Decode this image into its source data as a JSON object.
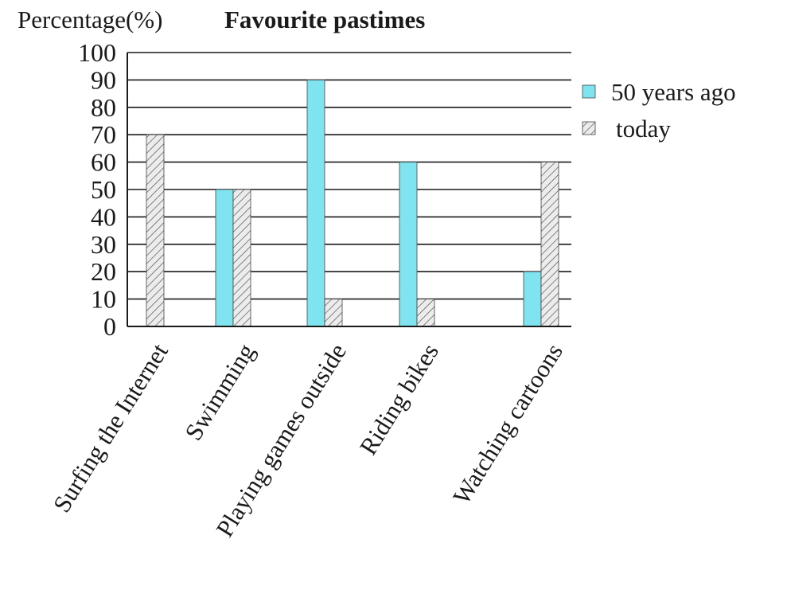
{
  "chart_data": {
    "type": "bar",
    "title": "Favourite pastimes",
    "ylabel": "Percentage(%)",
    "xlabel": "",
    "ylim": [
      0,
      100
    ],
    "yticks": [
      "0",
      "10",
      "20",
      "30",
      "40",
      "50",
      "60",
      "70",
      "80",
      "90",
      "100"
    ],
    "grid": true,
    "legend_position": "right",
    "categories": [
      "Surfing the Internet",
      "Swimming",
      "Playing games outside",
      "Riding bikes",
      "Watching cartoons"
    ],
    "series": [
      {
        "name": "50 years ago",
        "values": [
          0,
          50,
          90,
          60,
          20
        ],
        "color": "#7fe3f0",
        "pattern": "solid"
      },
      {
        "name": "today",
        "values": [
          70,
          50,
          10,
          10,
          60
        ],
        "color": "#e8e8e8",
        "pattern": "hatched"
      }
    ]
  }
}
